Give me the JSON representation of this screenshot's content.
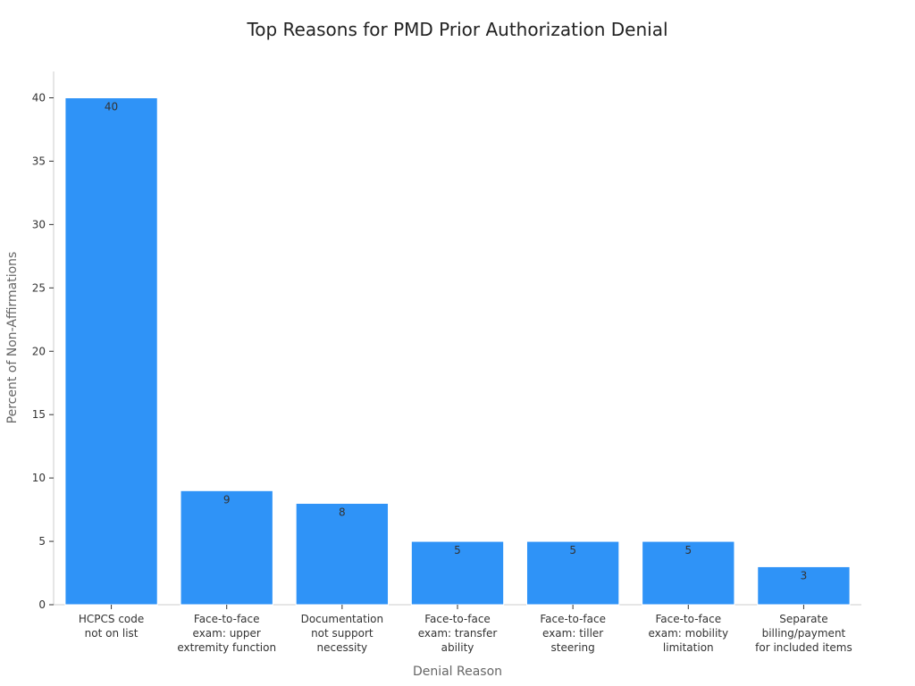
{
  "chart_data": {
    "type": "bar",
    "title": "Top Reasons for PMD Prior Authorization Denial",
    "xlabel": "Denial Reason",
    "ylabel": "Percent of Non-Affirmations",
    "categories": [
      [
        "HCPCS code",
        "not on list"
      ],
      [
        "Face-to-face",
        "exam: upper",
        "extremity function"
      ],
      [
        "Documentation",
        "not support",
        "necessity"
      ],
      [
        "Face-to-face",
        "exam: transfer",
        "ability"
      ],
      [
        "Face-to-face",
        "exam: tiller",
        "steering"
      ],
      [
        "Face-to-face",
        "exam: mobility",
        "limitation"
      ],
      [
        "Separate",
        "billing/payment",
        "for included items"
      ]
    ],
    "values": [
      40,
      9,
      8,
      5,
      5,
      5,
      3
    ],
    "ylim": [
      0,
      42
    ],
    "yticks": [
      0,
      5,
      10,
      15,
      20,
      25,
      30,
      35,
      40
    ],
    "bar_color": "#2f93f7",
    "grid": false,
    "legend": "none"
  }
}
